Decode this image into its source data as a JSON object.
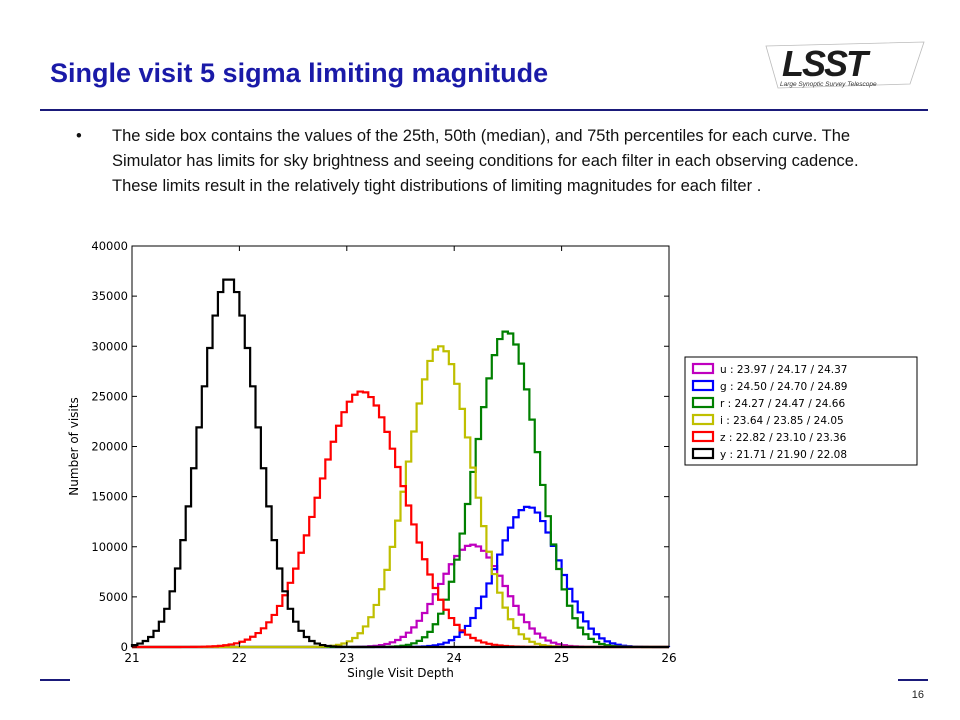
{
  "slide": {
    "title": "Single visit 5 sigma limiting magnitude",
    "bullet": "The side box contains the values of the 25th, 50th (median), and 75th percentiles for each curve.  The Simulator has limits for sky brightness and seeing conditions for each filter in each observing cadence.  These limits result in the relatively tight distributions of limiting magnitudes for each filter .",
    "page_number": "16"
  },
  "logo": {
    "text": "LSST",
    "tagline": "Large Synoptic Survey Telescope"
  },
  "colors": {
    "title": "#1a1aa8",
    "rule": "#1a1a7a"
  },
  "chart_data": {
    "type": "line",
    "style": "step-histogram",
    "xlabel": "Single Visit Depth",
    "ylabel": "Number of visits",
    "xlim": [
      21,
      26
    ],
    "ylim": [
      0,
      40000
    ],
    "xticks": [
      "21",
      "22",
      "23",
      "24",
      "25",
      "26"
    ],
    "yticks": [
      "0",
      "5000",
      "10000",
      "15000",
      "20000",
      "25000",
      "30000",
      "35000",
      "40000"
    ],
    "grid": false,
    "legend_position": "right",
    "series": [
      {
        "name": "u : 23.97 / 24.17 / 24.37",
        "color": "#bf00bf",
        "mean": 24.17,
        "sigma": 0.3,
        "peak": 10200
      },
      {
        "name": "g : 24.50 / 24.70 / 24.89",
        "color": "#0000ff",
        "mean": 24.69,
        "sigma": 0.29,
        "peak": 14000
      },
      {
        "name": "r : 24.27 / 24.47 / 24.66",
        "color": "#008000",
        "mean": 24.49,
        "sigma": 0.29,
        "peak": 31500
      },
      {
        "name": "i : 23.64 / 23.85 / 24.05",
        "color": "#bfbf00",
        "mean": 23.87,
        "sigma": 0.3,
        "peak": 30000
      },
      {
        "name": "z : 22.82 / 23.10 / 23.36",
        "color": "#ff0000",
        "mean": 23.14,
        "sigma": 0.4,
        "peak": 25500
      },
      {
        "name": "y : 21.71 / 21.90 / 22.08",
        "color": "#000000",
        "mean": 21.9,
        "sigma": 0.27,
        "peak": 36800
      }
    ]
  }
}
